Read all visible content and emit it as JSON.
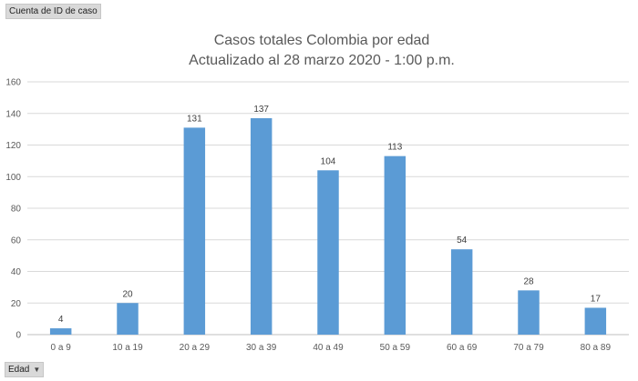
{
  "pivot": {
    "value_field": "Cuenta de ID de caso",
    "axis_field": "Edad",
    "axis_field_icon": "dropdown-arrow-icon"
  },
  "chart_data": {
    "type": "bar",
    "title": "Casos totales Colombia por edad",
    "subtitle": "Actualizado al 28 marzo 2020 - 1:00 p.m.",
    "xlabel": "",
    "ylabel": "",
    "categories": [
      "0 a 9",
      "10 a 19",
      "20 a 29",
      "30 a 39",
      "40 a 49",
      "50 a 59",
      "60 a 69",
      "70 a 79",
      "80 a 89"
    ],
    "values": [
      4,
      20,
      131,
      137,
      104,
      113,
      54,
      28,
      17
    ],
    "ylim": [
      0,
      160
    ],
    "yticks": [
      0,
      20,
      40,
      60,
      80,
      100,
      120,
      140,
      160
    ],
    "grid": true,
    "legend": "none",
    "data_labels": true,
    "bar_color": "#5b9bd5"
  }
}
